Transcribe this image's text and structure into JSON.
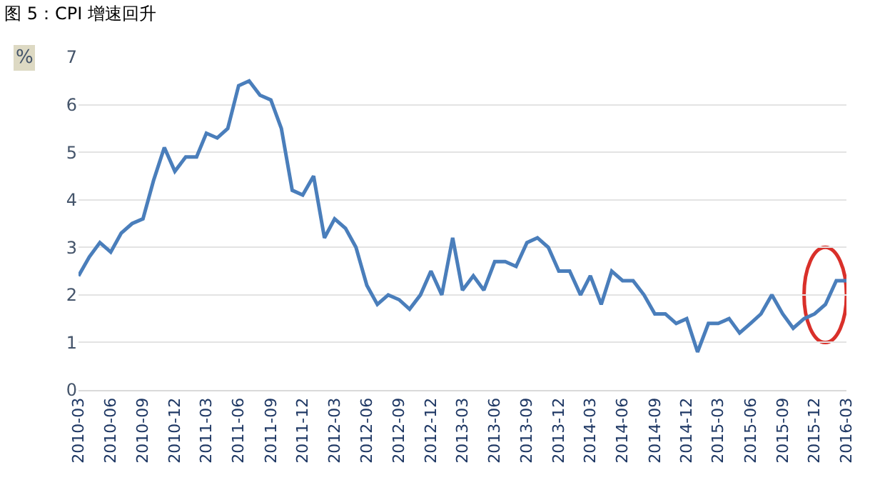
{
  "chart_data": {
    "type": "line",
    "title": "图 5：CPI 增速回升",
    "ylabel": "%",
    "x": [
      "2010-03",
      "2010-04",
      "2010-05",
      "2010-06",
      "2010-07",
      "2010-08",
      "2010-09",
      "2010-10",
      "2010-11",
      "2010-12",
      "2011-01",
      "2011-02",
      "2011-03",
      "2011-04",
      "2011-05",
      "2011-06",
      "2011-07",
      "2011-08",
      "2011-09",
      "2011-10",
      "2011-11",
      "2011-12",
      "2012-01",
      "2012-02",
      "2012-03",
      "2012-04",
      "2012-05",
      "2012-06",
      "2012-07",
      "2012-08",
      "2012-09",
      "2012-10",
      "2012-11",
      "2012-12",
      "2013-01",
      "2013-02",
      "2013-03",
      "2013-04",
      "2013-05",
      "2013-06",
      "2013-07",
      "2013-08",
      "2013-09",
      "2013-10",
      "2013-11",
      "2013-12",
      "2014-01",
      "2014-02",
      "2014-03",
      "2014-04",
      "2014-05",
      "2014-06",
      "2014-07",
      "2014-08",
      "2014-09",
      "2014-10",
      "2014-11",
      "2014-12",
      "2015-01",
      "2015-02",
      "2015-03",
      "2015-04",
      "2015-05",
      "2015-06",
      "2015-07",
      "2015-08",
      "2015-09",
      "2015-10",
      "2015-11",
      "2015-12",
      "2016-01",
      "2016-02",
      "2016-03"
    ],
    "series": [
      {
        "color": "#4a7ebb",
        "values": [
          2.4,
          2.8,
          3.1,
          2.9,
          3.3,
          3.5,
          3.6,
          4.4,
          5.1,
          4.6,
          4.9,
          4.9,
          5.4,
          5.3,
          5.5,
          6.4,
          6.5,
          6.2,
          6.1,
          5.5,
          4.2,
          4.1,
          4.5,
          3.2,
          3.6,
          3.4,
          3.0,
          2.2,
          1.8,
          2.0,
          1.9,
          1.7,
          2.0,
          2.5,
          2.0,
          3.2,
          2.1,
          2.4,
          2.1,
          2.7,
          2.7,
          2.6,
          3.1,
          3.2,
          3.0,
          2.5,
          2.5,
          2.0,
          2.4,
          1.8,
          2.5,
          2.3,
          2.3,
          2.0,
          1.6,
          1.6,
          1.4,
          1.5,
          0.8,
          1.4,
          1.4,
          1.5,
          1.2,
          1.4,
          1.6,
          2.0,
          1.6,
          1.3,
          1.5,
          1.6,
          1.8,
          2.3,
          2.3
        ]
      }
    ],
    "xlim": [
      "2010-03",
      "2016-03"
    ],
    "xticks": [
      "2010-03",
      "2010-06",
      "2010-09",
      "2010-12",
      "2011-03",
      "2011-06",
      "2011-09",
      "2011-12",
      "2012-03",
      "2012-06",
      "2012-09",
      "2012-12",
      "2013-03",
      "2013-06",
      "2013-09",
      "2013-12",
      "2014-03",
      "2014-06",
      "2014-09",
      "2014-12",
      "2015-03",
      "2015-06",
      "2015-09",
      "2015-12",
      "2016-03"
    ],
    "ylim": [
      0,
      7
    ],
    "yticks": [
      0,
      1,
      2,
      3,
      4,
      5,
      6,
      7
    ],
    "grid": "y",
    "marker": "none",
    "line_style": "solid"
  }
}
